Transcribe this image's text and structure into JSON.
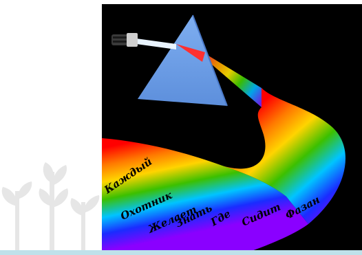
{
  "scene": {
    "background_color": "#000000",
    "prism_color": "#6d9ee6",
    "plant_color": "#e6e6e6",
    "bottom_bar_color": "#bfe1ea",
    "icons": [
      "flashlight-icon",
      "prism-icon",
      "rainbow-band",
      "plant-sprouts-icon"
    ]
  },
  "mnemonic": {
    "words": [
      {
        "text": "Каждый",
        "color": "#ff0000"
      },
      {
        "text": "Охотник",
        "color": "#ff8000"
      },
      {
        "text": "Желает",
        "color": "#ffd700"
      },
      {
        "text": "Знать",
        "color": "#00c000"
      },
      {
        "text": "Где",
        "color": "#00bfff"
      },
      {
        "text": "Сидит",
        "color": "#0000ff"
      },
      {
        "text": "Фазан",
        "color": "#8b00ff"
      }
    ]
  }
}
